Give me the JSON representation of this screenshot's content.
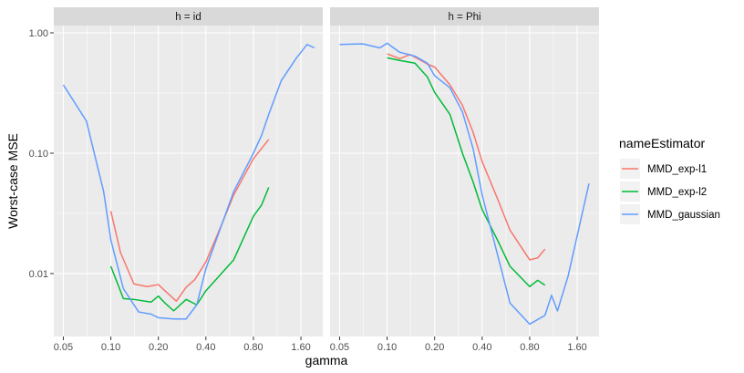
{
  "chart_data": {
    "type": "line",
    "xlabel": "gamma",
    "ylabel": "Worst-case MSE",
    "x_scale": "log2",
    "y_scale": "log10",
    "xlim": [
      0.0435,
      2.2
    ],
    "ylim": [
      0.003,
      1.15
    ],
    "x_ticks": [
      0.05,
      0.1,
      0.2,
      0.4,
      0.8,
      1.6
    ],
    "x_tick_labels": [
      "0.05",
      "0.10",
      "0.20",
      "0.40",
      "0.80",
      "1.60"
    ],
    "y_ticks": [
      0.01,
      0.1,
      1.0
    ],
    "y_tick_labels": [
      "0.01",
      "0.10",
      "1.00"
    ],
    "grid": true,
    "legend": {
      "title": "nameEstimator",
      "position": "right",
      "entries": [
        "MMD_exp-l1",
        "MMD_exp-l2",
        "MMD_gaussian"
      ]
    },
    "colors": {
      "MMD_exp-l1": "#F8766D",
      "MMD_exp-l2": "#00BA38",
      "MMD_gaussian": "#619CFF",
      "panel_bg": "#EBEBEB",
      "strip_bg": "#D9D9D9",
      "grid": "#FFFFFF"
    },
    "panels": [
      {
        "strip": "h = id",
        "series": [
          {
            "name": "MMD_exp-l1",
            "x": [
              0.1,
              0.115,
              0.14,
              0.17,
              0.2,
              0.22,
              0.26,
              0.3,
              0.34,
              0.4,
              0.5,
              0.6,
              0.8,
              1.0
            ],
            "y": [
              0.033,
              0.015,
              0.0082,
              0.0078,
              0.0081,
              0.0072,
              0.0059,
              0.0077,
              0.0089,
              0.0125,
              0.025,
              0.045,
              0.09,
              0.13
            ]
          },
          {
            "name": "MMD_exp-l2",
            "x": [
              0.1,
              0.12,
              0.14,
              0.18,
              0.2,
              0.22,
              0.25,
              0.3,
              0.35,
              0.4,
              0.6,
              0.8,
              0.9,
              1.0
            ],
            "y": [
              0.0115,
              0.0062,
              0.0061,
              0.0058,
              0.0065,
              0.0057,
              0.0049,
              0.0061,
              0.0055,
              0.0072,
              0.013,
              0.03,
              0.037,
              0.052
            ]
          },
          {
            "name": "MMD_gaussian",
            "x": [
              0.05,
              0.07,
              0.09,
              0.1,
              0.12,
              0.15,
              0.18,
              0.2,
              0.25,
              0.3,
              0.35,
              0.4,
              0.6,
              0.8,
              0.9,
              1.0,
              1.2,
              1.5,
              1.75,
              1.95
            ],
            "y": [
              0.37,
              0.185,
              0.048,
              0.019,
              0.0075,
              0.0048,
              0.0046,
              0.0043,
              0.0042,
              0.0042,
              0.0055,
              0.011,
              0.048,
              0.1,
              0.14,
              0.21,
              0.4,
              0.62,
              0.8,
              0.75
            ]
          }
        ]
      },
      {
        "strip": "h = Phi",
        "series": [
          {
            "name": "MMD_exp-l1",
            "x": [
              0.1,
              0.12,
              0.14,
              0.16,
              0.18,
              0.2,
              0.25,
              0.3,
              0.35,
              0.4,
              0.5,
              0.6,
              0.8,
              0.9,
              1.0
            ],
            "y": [
              0.67,
              0.61,
              0.66,
              0.6,
              0.55,
              0.52,
              0.37,
              0.25,
              0.15,
              0.085,
              0.042,
              0.023,
              0.013,
              0.0135,
              0.016
            ]
          },
          {
            "name": "MMD_exp-l2",
            "x": [
              0.1,
              0.12,
              0.15,
              0.18,
              0.2,
              0.25,
              0.3,
              0.35,
              0.4,
              0.5,
              0.6,
              0.8,
              0.9,
              1.0
            ],
            "y": [
              0.62,
              0.59,
              0.56,
              0.43,
              0.32,
              0.21,
              0.1,
              0.058,
              0.034,
              0.019,
              0.0115,
              0.0078,
              0.0088,
              0.008
            ]
          },
          {
            "name": "MMD_gaussian",
            "x": [
              0.05,
              0.07,
              0.09,
              0.1,
              0.12,
              0.15,
              0.18,
              0.2,
              0.25,
              0.3,
              0.35,
              0.4,
              0.6,
              0.8,
              1.0,
              1.1,
              1.2,
              1.4,
              1.9
            ],
            "y": [
              0.8,
              0.81,
              0.75,
              0.82,
              0.69,
              0.64,
              0.56,
              0.44,
              0.35,
              0.22,
              0.11,
              0.045,
              0.0057,
              0.0038,
              0.0045,
              0.0066,
              0.0049,
              0.0095,
              0.056
            ]
          }
        ]
      }
    ]
  }
}
